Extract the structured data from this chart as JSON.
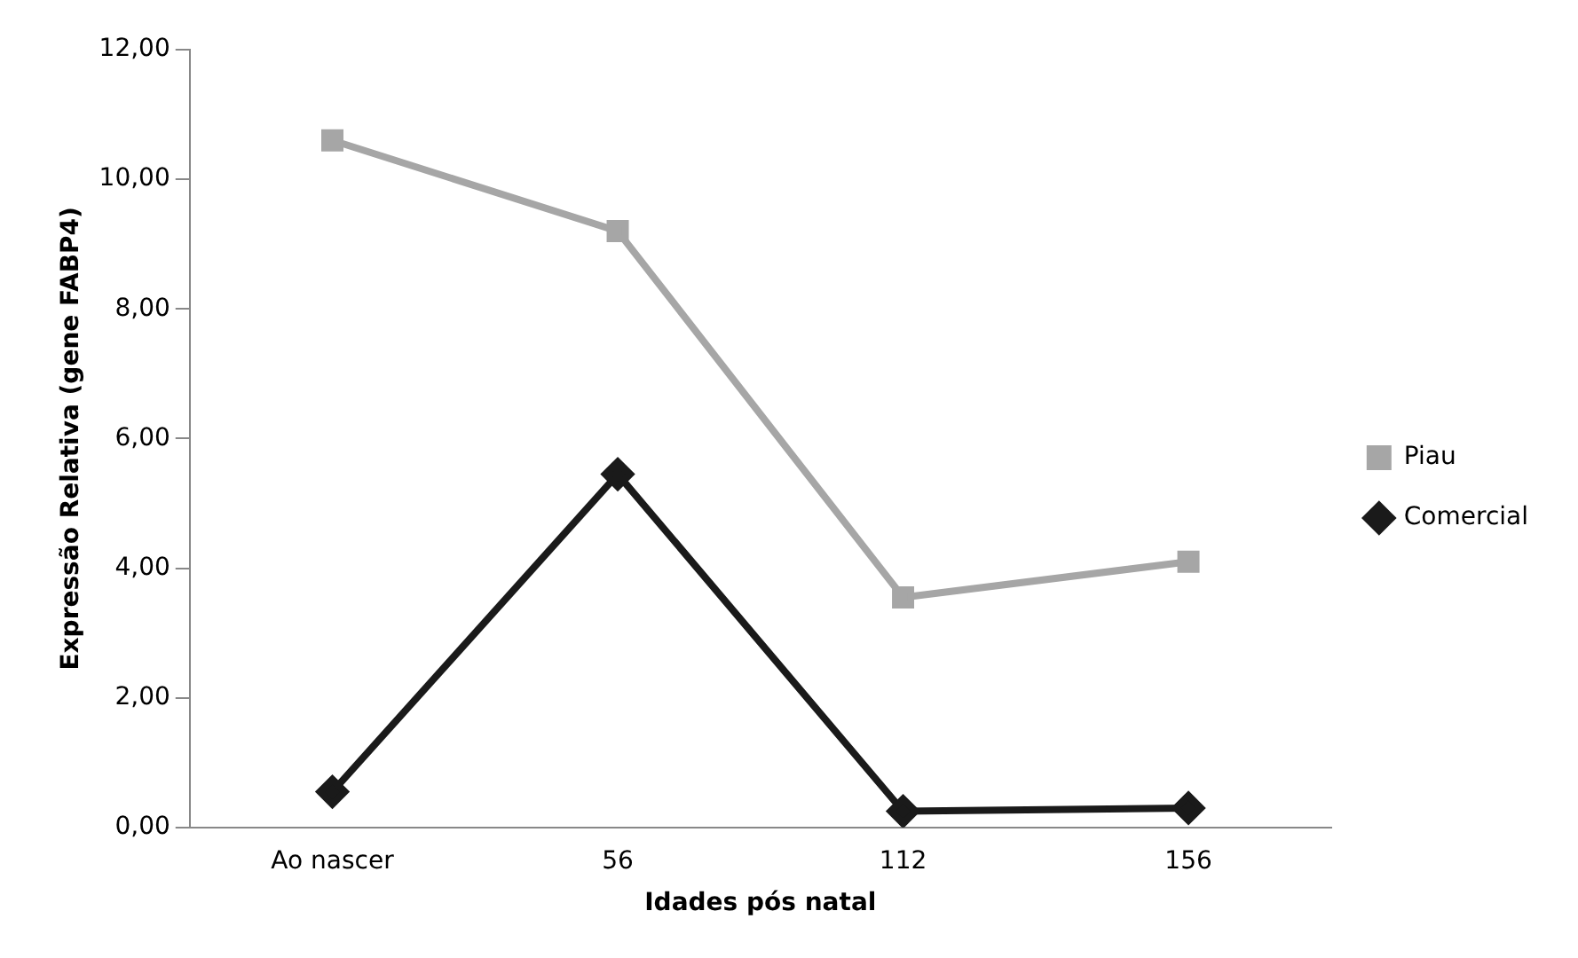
{
  "chart_data": {
    "type": "line",
    "xlabel": "Idades pós natal",
    "ylabel": "Expressão Relativa (gene FABP4)",
    "categories": [
      "Ao nascer",
      "56",
      "112",
      "156"
    ],
    "series": [
      {
        "name": "Piau",
        "color": "#a6a6a6",
        "marker": "square",
        "values": [
          10.6,
          9.2,
          3.55,
          4.1
        ]
      },
      {
        "name": "Comercial",
        "color": "#1a1a1a",
        "marker": "diamond",
        "values": [
          0.55,
          5.45,
          0.25,
          0.3
        ]
      }
    ],
    "ylim": [
      0,
      12
    ],
    "yticks": [
      {
        "value": 0,
        "label": "0,00"
      },
      {
        "value": 2,
        "label": "2,00"
      },
      {
        "value": 4,
        "label": "4,00"
      },
      {
        "value": 6,
        "label": "6,00"
      },
      {
        "value": 8,
        "label": "8,00"
      },
      {
        "value": 10,
        "label": "10,00"
      },
      {
        "value": 12,
        "label": "12,00"
      }
    ],
    "grid": false,
    "legend": "right",
    "line_style": "solid"
  }
}
